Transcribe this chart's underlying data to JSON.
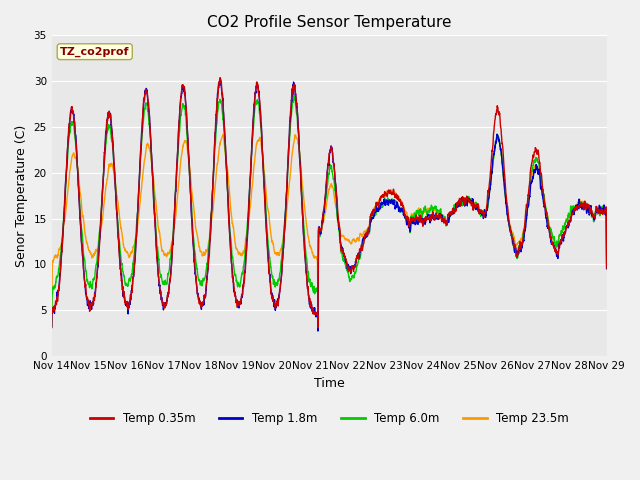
{
  "title": "CO2 Profile Sensor Temperature",
  "ylabel": "Senor Temperature (C)",
  "xlabel": "Time",
  "label_text": "TZ_co2prof",
  "ylim": [
    0,
    35
  ],
  "xlim": [
    0,
    15
  ],
  "xtick_labels": [
    "Nov 14",
    "Nov 15",
    "Nov 16",
    "Nov 17",
    "Nov 18",
    "Nov 19",
    "Nov 20",
    "Nov 21",
    "Nov 22",
    "Nov 23",
    "Nov 24",
    "Nov 25",
    "Nov 26",
    "Nov 27",
    "Nov 28",
    "Nov 29"
  ],
  "legend_entries": [
    "Temp 0.35m",
    "Temp 1.8m",
    "Temp 6.0m",
    "Temp 23.5m"
  ],
  "colors": [
    "#cc0000",
    "#0000cc",
    "#00cc00",
    "#ff9900"
  ],
  "plot_bg_color": "#e8e8e8",
  "fig_bg_color": "#f0f0f0",
  "title_fontsize": 11,
  "axis_label_fontsize": 9,
  "tick_fontsize": 7.5,
  "linewidth": 1.0
}
